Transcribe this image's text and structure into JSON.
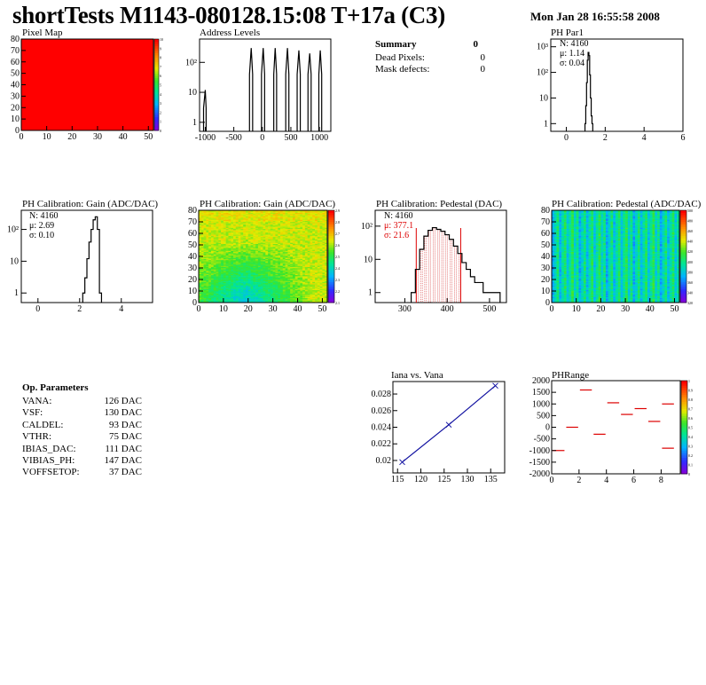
{
  "header": {
    "title": "shortTests M1143-080128.15:08 T+17a (C3)",
    "date": "Mon Jan 28 16:55:58 2008"
  },
  "summary": {
    "heading": "Summary",
    "heading_value": "0",
    "rows": [
      {
        "label": "Dead Pixels:",
        "value": "0"
      },
      {
        "label": "Mask defects:",
        "value": "0"
      }
    ]
  },
  "op_params": {
    "heading": "Op. Parameters",
    "rows": [
      {
        "label": "VANA:",
        "value": "126 DAC"
      },
      {
        "label": "VSF:",
        "value": "130 DAC"
      },
      {
        "label": "CALDEL:",
        "value": "93 DAC"
      },
      {
        "label": "VTHR:",
        "value": "75 DAC"
      },
      {
        "label": "IBIAS_DAC:",
        "value": "111 DAC"
      },
      {
        "label": "VIBIAS_PH:",
        "value": "147 DAC"
      },
      {
        "label": "VOFFSETOP:",
        "value": "37 DAC"
      }
    ]
  },
  "stats": {
    "ph_par1": [
      "N: 4160",
      "μ: 1.14",
      "σ: 0.04"
    ],
    "gain_1d": [
      "N: 4160",
      "μ: 2.69",
      "σ: 0.10"
    ],
    "pedestal_1d": [
      "N: 4160",
      "μ: 377.1",
      "σ: 21.6"
    ]
  },
  "colors": {
    "hist_line": "#000000",
    "fit_red": "#dd0000",
    "graph_blue": "#1010a0",
    "pixel_map_fill": "#ff0000"
  },
  "chart_data": [
    {
      "type": "heatmap",
      "title": "Pixel Map",
      "x_range": [
        0,
        52
      ],
      "y_range": [
        0,
        80
      ],
      "x_ticks": [
        "0",
        "10",
        "20",
        "30",
        "40",
        "50"
      ],
      "y_ticks": [
        "0",
        "10",
        "20",
        "30",
        "40",
        "50",
        "60",
        "70",
        "80"
      ],
      "z_range": [
        0,
        10
      ],
      "z_ticks": [
        "0",
        "1",
        "2",
        "3",
        "4",
        "5",
        "6",
        "7",
        "8",
        "9",
        "10"
      ],
      "value_all_pixels": 10
    },
    {
      "type": "bar",
      "title": "Address Levels",
      "x_range": [
        -1100,
        1200
      ],
      "x_ticks": [
        "-1000",
        "-500",
        "0",
        "500",
        "1000"
      ],
      "y_scale": "log",
      "y_range": [
        0.5,
        600
      ],
      "y_ticks": [
        "1",
        "10",
        "10²"
      ],
      "peaks": [
        {
          "x": [
            -1030,
            -1000,
            -985
          ],
          "y": [
            3,
            12,
            3
          ]
        },
        {
          "x": [
            -225,
            -195,
            -170
          ],
          "y": [
            40,
            300,
            40
          ]
        },
        {
          "x": [
            -15,
            15,
            40
          ],
          "y": [
            40,
            300,
            40
          ]
        },
        {
          "x": [
            200,
            225,
            250
          ],
          "y": [
            40,
            300,
            40
          ]
        },
        {
          "x": [
            410,
            440,
            465
          ],
          "y": [
            40,
            300,
            40
          ]
        },
        {
          "x": [
            610,
            640,
            665
          ],
          "y": [
            40,
            250,
            40
          ]
        },
        {
          "x": [
            800,
            830,
            855
          ],
          "y": [
            40,
            200,
            40
          ]
        },
        {
          "x": [
            990,
            1015,
            1040
          ],
          "y": [
            40,
            250,
            40
          ]
        }
      ]
    },
    {
      "type": "bar",
      "title": "PH Par1",
      "x_range": [
        -0.8,
        6
      ],
      "x_ticks": [
        "0",
        "2",
        "4",
        "6"
      ],
      "y_scale": "log",
      "y_range": [
        0.5,
        2000
      ],
      "y_ticks": [
        "1",
        "10",
        "10²",
        "10³"
      ],
      "x": [
        0.98,
        1.02,
        1.06,
        1.1,
        1.14,
        1.18,
        1.22,
        1.26,
        1.3,
        1.34
      ],
      "values": [
        1,
        5,
        40,
        300,
        600,
        450,
        80,
        10,
        2,
        1
      ]
    },
    {
      "type": "bar",
      "title": "PH Calibration: Gain (ADC/DAC)",
      "x_range": [
        -0.8,
        5.5
      ],
      "x_ticks": [
        "0",
        "2",
        "4"
      ],
      "y_scale": "log",
      "y_range": [
        0.5,
        400
      ],
      "y_ticks": [
        "1",
        "10",
        "10²"
      ],
      "x": [
        2.2,
        2.3,
        2.4,
        2.5,
        2.6,
        2.7,
        2.8,
        2.9,
        3.0
      ],
      "values": [
        1,
        3,
        12,
        40,
        100,
        200,
        250,
        100,
        1
      ]
    },
    {
      "type": "heatmap",
      "title": "PH Calibration: Gain (ADC/DAC)",
      "x_range": [
        0,
        52
      ],
      "y_range": [
        0,
        80
      ],
      "x_ticks": [
        "0",
        "10",
        "20",
        "30",
        "40",
        "50"
      ],
      "y_ticks": [
        "0",
        "10",
        "20",
        "30",
        "40",
        "50",
        "60",
        "70",
        "80"
      ],
      "z_range": [
        2.1,
        3.0
      ],
      "z_ticks": [
        "2.1",
        "2.2",
        "2.3",
        "2.4",
        "2.5",
        "2.6",
        "2.7",
        "2.8",
        "2.9"
      ],
      "pattern": "mostly 2.6-2.8 at top, dropping to ~2.4-2.5 in the lower-left region"
    },
    {
      "type": "bar",
      "title": "PH Calibration: Pedestal (DAC)",
      "x_range": [
        230,
        540
      ],
      "x_ticks": [
        "300",
        "400",
        "500"
      ],
      "y_scale": "log",
      "y_range": [
        0.5,
        300
      ],
      "y_ticks": [
        "1",
        "10",
        "10²"
      ],
      "x": [
        320,
        330,
        340,
        350,
        360,
        370,
        380,
        390,
        400,
        410,
        420,
        430,
        440,
        450,
        460,
        470,
        480,
        490,
        500,
        510,
        520
      ],
      "values": [
        1,
        5,
        20,
        50,
        75,
        90,
        80,
        70,
        55,
        40,
        25,
        15,
        8,
        5,
        3,
        2,
        2,
        1,
        1,
        1,
        1
      ],
      "fit_range": [
        327,
        432
      ]
    },
    {
      "type": "heatmap",
      "title": "PH Calibration: Pedestal (ADC/DAC)",
      "x_range": [
        0,
        52
      ],
      "y_range": [
        0,
        80
      ],
      "x_ticks": [
        "0",
        "10",
        "20",
        "30",
        "40",
        "50"
      ],
      "y_ticks": [
        "0",
        "10",
        "20",
        "30",
        "40",
        "50",
        "60",
        "70",
        "80"
      ],
      "z_range": [
        320,
        500
      ],
      "z_ticks": [
        "320",
        "340",
        "360",
        "380",
        "400",
        "420",
        "440",
        "460",
        "480",
        "500"
      ],
      "pattern": "vertical column stripes, mostly blue/cyan with green"
    },
    {
      "type": "line",
      "title": "Iana vs. Vana",
      "x_range": [
        114,
        138
      ],
      "y_range": [
        0.0185,
        0.0295
      ],
      "x_ticks": [
        "115",
        "120",
        "125",
        "130",
        "135"
      ],
      "y_ticks": [
        "0.02",
        "0.022",
        "0.024",
        "0.026",
        "0.028"
      ],
      "x": [
        116,
        126,
        136
      ],
      "y": [
        0.0198,
        0.0243,
        0.029
      ]
    },
    {
      "type": "scatter",
      "title": "PHRange",
      "x_range": [
        0,
        9.4
      ],
      "y_range": [
        -2000,
        2000
      ],
      "x_ticks": [
        "0",
        "2",
        "4",
        "6",
        "8"
      ],
      "y_ticks": [
        "2000",
        "1500",
        "1000",
        "500",
        "0",
        "-500",
        "-1000",
        "-1500",
        "-2000"
      ],
      "z_ticks": [
        "0",
        "0.1",
        "0.2",
        "0.3",
        "0.4",
        "0.5",
        "0.6",
        "0.7",
        "0.8",
        "0.9",
        "1"
      ],
      "segments": [
        {
          "x": [
            0,
            1
          ],
          "y": -1000
        },
        {
          "x": [
            1,
            2
          ],
          "y": 0
        },
        {
          "x": [
            2,
            3
          ],
          "y": 1600
        },
        {
          "x": [
            3,
            4
          ],
          "y": -300
        },
        {
          "x": [
            4,
            5
          ],
          "y": 1050
        },
        {
          "x": [
            5,
            6
          ],
          "y": 550
        },
        {
          "x": [
            6,
            7
          ],
          "y": 800
        },
        {
          "x": [
            7,
            8
          ],
          "y": 250
        },
        {
          "x": [
            8,
            9
          ],
          "y": 1000
        },
        {
          "x": [
            8,
            9
          ],
          "y": -900
        }
      ]
    }
  ]
}
